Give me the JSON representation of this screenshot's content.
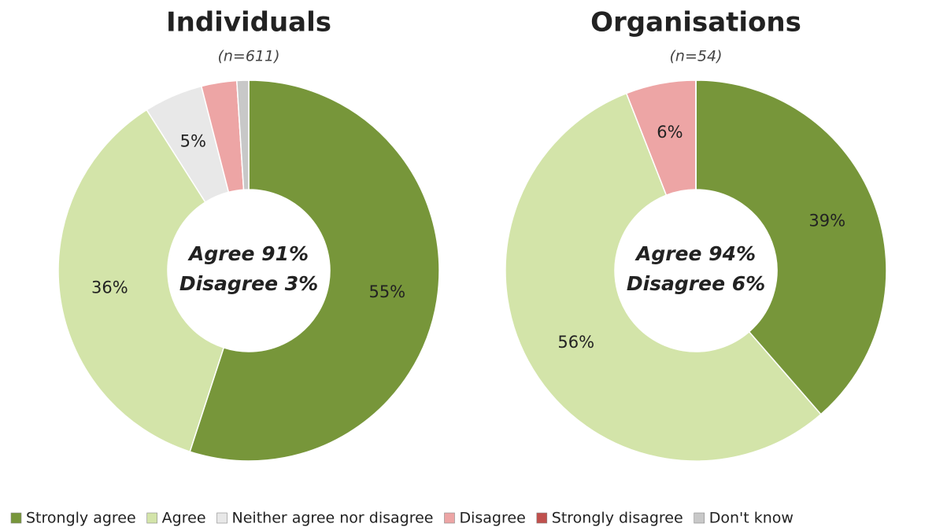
{
  "chart_data": [
    {
      "type": "pie",
      "donut": true,
      "title": "Individuals",
      "subtitle": "(n=611)",
      "categories": [
        "Strongly agree",
        "Agree",
        "Neither agree nor disagree",
        "Disagree",
        "Strongly disagree",
        "Don't know"
      ],
      "values": [
        55,
        36,
        5,
        3,
        0,
        1
      ],
      "value_labels": [
        "55%",
        "36%",
        "5%",
        null,
        null,
        null
      ],
      "colors": [
        "#77963a",
        "#d3e4a9",
        "#e8e8e8",
        "#eda5a5",
        "#c0504d",
        "#c8c8c8"
      ],
      "annotations": [
        "Agree 91%",
        "Disagree 3%"
      ]
    },
    {
      "type": "pie",
      "donut": true,
      "title": "Organisations",
      "subtitle": "(n=54)",
      "categories": [
        "Strongly agree",
        "Agree",
        "Neither agree nor disagree",
        "Disagree",
        "Strongly disagree",
        "Don't know"
      ],
      "values": [
        39,
        56,
        0,
        6,
        0,
        0
      ],
      "value_labels": [
        "39%",
        "56%",
        null,
        "6%",
        null,
        null
      ],
      "colors": [
        "#77963a",
        "#d3e4a9",
        "#e8e8e8",
        "#eda5a5",
        "#c0504d",
        "#c8c8c8"
      ],
      "annotations": [
        "Agree 94%",
        "Disagree 6%"
      ]
    }
  ]
}
